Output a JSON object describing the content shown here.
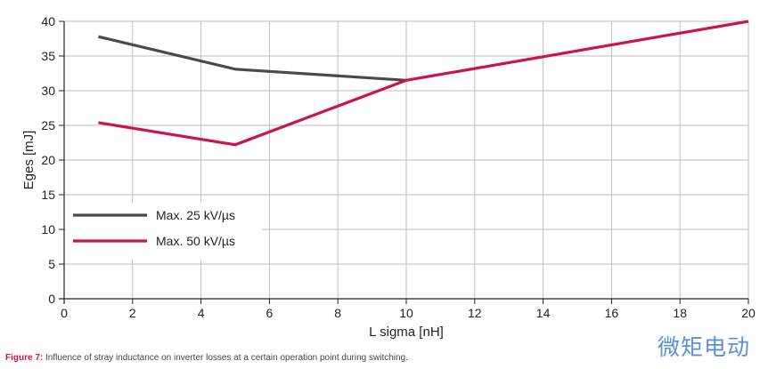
{
  "chart_data": {
    "type": "line",
    "xlabel": "L sigma [nH]",
    "ylabel": "Eges [mJ]",
    "xlim": [
      0,
      20
    ],
    "ylim": [
      0,
      40
    ],
    "xticks": [
      0,
      2,
      4,
      6,
      8,
      10,
      12,
      14,
      16,
      18,
      20
    ],
    "yticks": [
      0,
      5,
      10,
      15,
      20,
      25,
      30,
      35,
      40
    ],
    "grid": true,
    "legend_position": "lower-left",
    "series": [
      {
        "name": "Max. 25 kV/µs",
        "color": "#4a4a46",
        "x": [
          1,
          5,
          10
        ],
        "y": [
          37.8,
          33.1,
          31.5
        ]
      },
      {
        "name": "Max. 50 kV/µs",
        "color": "#c8154f",
        "x": [
          1,
          5,
          10,
          20
        ],
        "y": [
          25.4,
          22.2,
          31.5,
          40
        ]
      }
    ]
  },
  "caption": {
    "label": "Figure 7:",
    "text": " Influence of stray inductance on inverter losses at a certain operation point during switching."
  },
  "watermark": "微矩电动"
}
